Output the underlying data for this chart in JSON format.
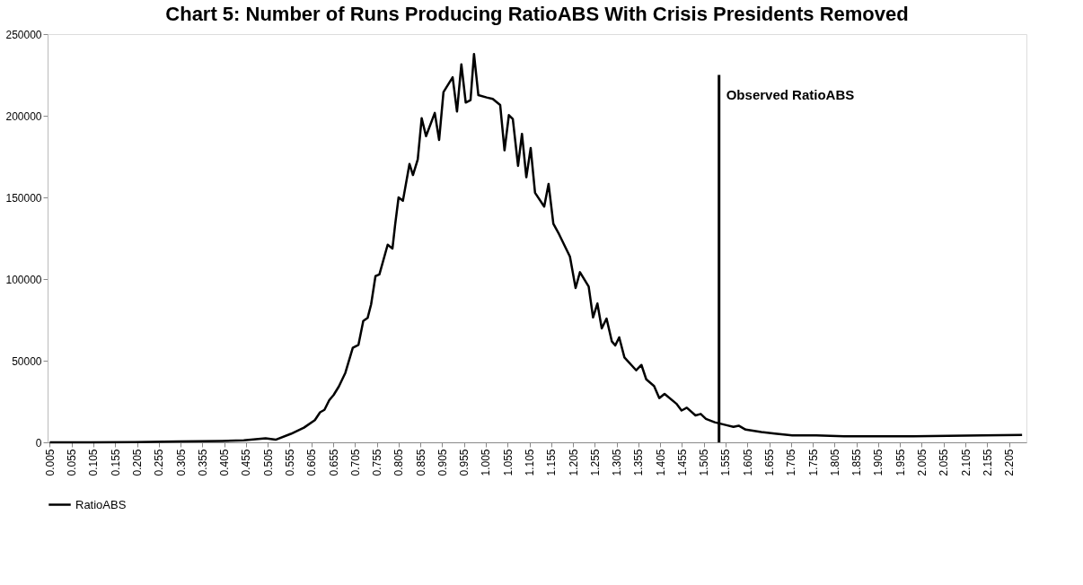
{
  "chart_data": {
    "type": "line",
    "title": "Chart 5: Number of Runs Producing RatioABS With Crisis Presidents Removed",
    "series": [
      {
        "name": "RatioABS",
        "color": "#000000",
        "x": [
          0.005,
          0.1,
          0.2,
          0.3,
          0.4,
          0.45,
          0.5,
          0.523,
          0.558,
          0.588,
          0.613,
          0.625,
          0.635,
          0.646,
          0.656,
          0.668,
          0.683,
          0.7,
          0.713,
          0.724,
          0.734,
          0.742,
          0.752,
          0.761,
          0.78,
          0.791,
          0.797,
          0.805,
          0.815,
          0.83,
          0.838,
          0.849,
          0.858,
          0.868,
          0.888,
          0.898,
          0.908,
          0.929,
          0.939,
          0.949,
          0.959,
          0.97,
          0.978,
          0.988,
          1.007,
          1.021,
          1.038,
          1.048,
          1.058,
          1.067,
          1.079,
          1.088,
          1.098,
          1.108,
          1.118,
          1.139,
          1.149,
          1.16,
          1.173,
          1.198,
          1.211,
          1.221,
          1.241,
          1.251,
          1.261,
          1.271,
          1.282,
          1.294,
          1.302,
          1.311,
          1.323,
          1.35,
          1.362,
          1.373,
          1.391,
          1.403,
          1.415,
          1.442,
          1.454,
          1.466,
          1.486,
          1.498,
          1.51,
          1.53,
          1.557,
          1.573,
          1.585,
          1.601,
          1.637,
          1.668,
          1.708,
          1.763,
          1.827,
          1.985,
          2.143,
          2.235
        ],
        "values": [
          0,
          0,
          200,
          500,
          800,
          1200,
          2500,
          1600,
          5200,
          9000,
          13600,
          18400,
          19900,
          25800,
          29000,
          34200,
          42600,
          57900,
          59700,
          74300,
          76200,
          84500,
          101800,
          102800,
          121000,
          118700,
          133000,
          150000,
          148000,
          170500,
          163700,
          173300,
          198500,
          187500,
          201700,
          185200,
          214500,
          223600,
          202600,
          231500,
          208100,
          209500,
          237800,
          212600,
          211200,
          210300,
          206600,
          178800,
          200400,
          198000,
          169300,
          188900,
          162300,
          180200,
          152800,
          144400,
          158300,
          133900,
          127500,
          113700,
          94500,
          104200,
          95400,
          76500,
          85000,
          69800,
          75800,
          61900,
          59300,
          64300,
          52000,
          44100,
          47400,
          38600,
          34500,
          27100,
          29700,
          23700,
          19500,
          21200,
          16500,
          17400,
          14400,
          12300,
          10500,
          9500,
          10200,
          7800,
          6300,
          5300,
          4200,
          4200,
          3700,
          3700,
          4200,
          4600
        ]
      }
    ],
    "xlim": [
      0,
      2.245
    ],
    "xticks": [
      0.005,
      0.055,
      0.105,
      0.155,
      0.205,
      0.255,
      0.305,
      0.355,
      0.405,
      0.455,
      0.505,
      0.555,
      0.605,
      0.655,
      0.705,
      0.755,
      0.805,
      0.855,
      0.905,
      0.955,
      1.005,
      1.055,
      1.105,
      1.155,
      1.205,
      1.255,
      1.305,
      1.355,
      1.405,
      1.455,
      1.505,
      1.555,
      1.605,
      1.655,
      1.705,
      1.755,
      1.805,
      1.855,
      1.905,
      1.955,
      2.005,
      2.055,
      2.105,
      2.155,
      2.205
    ],
    "ylim": [
      0,
      250000
    ],
    "yticks": [
      0,
      50000,
      100000,
      150000,
      200000,
      250000
    ],
    "ref_lines": [
      {
        "axis": "x",
        "value": 1.54,
        "label": "Observed RatioABS",
        "color": "#000000"
      }
    ],
    "grid": false,
    "legend": "bottom",
    "marker": "none",
    "line_style": "solid"
  }
}
